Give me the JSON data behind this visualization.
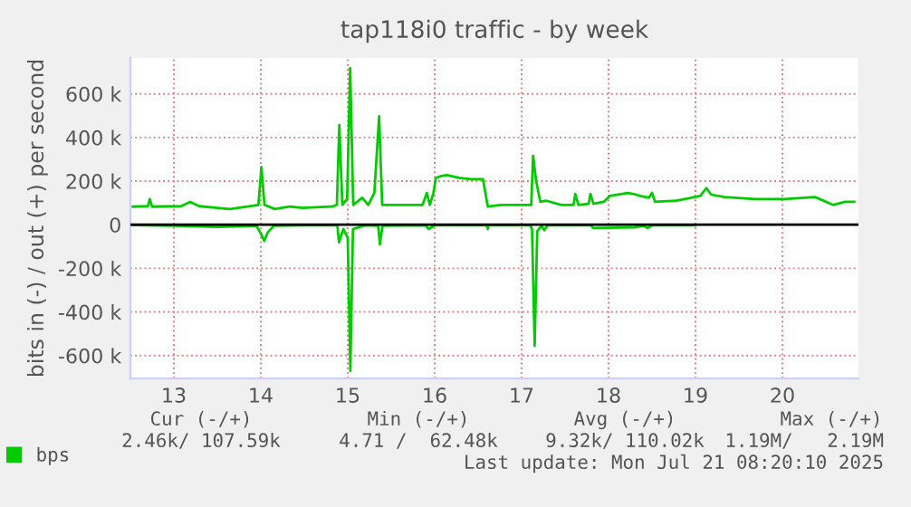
{
  "chart_data": {
    "type": "line",
    "title": "tap118i0 traffic - by week",
    "ylabel": "bits in (-) / out (+) per second",
    "xlim": [
      12.5,
      20.875
    ],
    "xticks": [
      13,
      14,
      15,
      16,
      17,
      18,
      19,
      20
    ],
    "ylim": [
      -705000,
      765000
    ],
    "yticks": [
      {
        "value": -600000,
        "label": "-600 k"
      },
      {
        "value": -400000,
        "label": "-400 k"
      },
      {
        "value": -200000,
        "label": "-200 k"
      },
      0,
      {
        "value": 200000,
        "label": "200 k"
      },
      {
        "value": 400000,
        "label": "400 k"
      },
      {
        "value": 600000,
        "label": "600 k"
      }
    ],
    "grid": true,
    "legend": "bottom left",
    "ref_lines": [
      {
        "axis": "y",
        "value": 0,
        "color": "#000000"
      }
    ],
    "series": [
      {
        "name": "bps",
        "color": "#00cc00",
        "x": [
          12.528,
          12.701,
          12.722,
          12.75,
          13.083,
          13.188,
          13.292,
          13.5,
          13.639,
          13.847,
          13.972,
          14.007,
          14.042,
          14.16,
          14.333,
          14.472,
          14.819,
          14.875,
          14.903,
          14.938,
          14.993,
          15.028,
          15.063,
          15.167,
          15.236,
          15.306,
          15.361,
          15.396,
          15.583,
          15.861,
          15.91,
          15.944,
          15.986,
          16.014,
          16.069,
          16.139,
          16.278,
          16.417,
          16.556,
          16.611,
          16.764,
          17.111,
          17.132,
          17.167,
          17.215,
          17.285,
          17.458,
          17.597,
          17.618,
          17.653,
          17.771,
          17.792,
          17.826,
          17.944,
          18.014,
          18.222,
          18.292,
          18.361,
          18.465,
          18.5,
          18.535,
          18.778,
          19.056,
          19.125,
          19.181,
          19.333,
          19.681,
          20.028,
          20.375,
          20.583,
          20.722,
          20.826
        ],
        "values": [
          83000,
          85000,
          118000,
          83000,
          85000,
          105000,
          85000,
          77000,
          72000,
          83000,
          91000,
          264000,
          91000,
          72000,
          83000,
          77000,
          83000,
          91000,
          457000,
          91000,
          118000,
          718000,
          91000,
          124000,
          91000,
          146000,
          498000,
          91000,
          91000,
          91000,
          146000,
          91000,
          146000,
          215000,
          223000,
          228000,
          215000,
          209000,
          209000,
          83000,
          91000,
          91000,
          316000,
          201000,
          105000,
          110000,
          91000,
          91000,
          141000,
          91000,
          96000,
          141000,
          96000,
          105000,
          132000,
          146000,
          141000,
          132000,
          124000,
          146000,
          105000,
          110000,
          132000,
          168000,
          138000,
          127000,
          118000,
          118000,
          127000,
          91000,
          105000,
          105000
        ]
      },
      {
        "color": "#00cc00",
        "x": [
          12.528,
          13.0,
          13.5,
          13.95,
          14.0,
          14.04,
          14.08,
          14.15,
          14.5,
          14.88,
          14.9,
          14.95,
          15.0,
          15.03,
          15.06,
          15.2,
          15.35,
          15.37,
          15.4,
          15.9,
          15.93,
          16.0,
          16.6,
          16.61,
          16.62,
          17.1,
          17.12,
          17.15,
          17.18,
          17.23,
          17.26,
          17.3,
          17.8,
          17.82,
          18.3,
          18.4,
          18.45,
          18.5,
          19.0
        ],
        "values": [
          -2000,
          -5000,
          -10000,
          -5000,
          -40000,
          -74000,
          -35000,
          -5000,
          -3000,
          -3000,
          -80000,
          -20000,
          -60000,
          -670000,
          -20000,
          -3000,
          -5000,
          -90000,
          -5000,
          -3000,
          -20000,
          -3000,
          -3000,
          -20000,
          -3000,
          -3000,
          -20000,
          -555000,
          -30000,
          -5000,
          -25000,
          -3000,
          -3000,
          -15000,
          -12000,
          -5000,
          -15000,
          -3000,
          -3000
        ]
      }
    ],
    "annotations": [
      "Cur (-/+)",
      "Min (-/+)",
      "Avg (-/+)",
      "Max (-/+)",
      "2.46k/ 107.59k",
      "4.71 /  62.48k",
      "9.32k/ 110.02k",
      "1.19M/   2.19M",
      "Last update: Mon Jul 21 08:20:10 2025"
    ]
  }
}
